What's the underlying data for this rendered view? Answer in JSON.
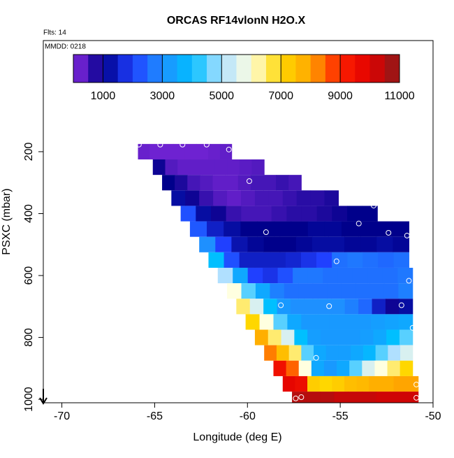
{
  "chart_data": {
    "type": "heatmap",
    "title": "ORCAS RF14vlonN H2O.X",
    "annotations": [
      "Flts: 14",
      "MMDD: 0218"
    ],
    "xlabel": "Longitude (deg E)",
    "ylabel": "PSXC (mbar)",
    "xlim": [
      -71,
      -50
    ],
    "xticks": [
      -70,
      -65,
      -60,
      -55,
      -50
    ],
    "ylim": [
      -159,
      1011
    ],
    "yticks": [
      200,
      400,
      600,
      800,
      1000
    ],
    "colorbar": {
      "lim": [
        0,
        11000
      ],
      "ticks": [
        1000,
        3000,
        5000,
        7000,
        9000,
        11000
      ],
      "colors": [
        "#8a2be2",
        "#00008b",
        "#2040ff",
        "#1e90ff",
        "#00bfff",
        "#b0e0ff",
        "#ffffe0",
        "#ffd700",
        "#ffa500",
        "#ff2000",
        "#e00000",
        "#8b1a1a"
      ]
    },
    "rows": [
      {
        "p": 200,
        "lon": [
          -65.9,
          -60.85
        ],
        "values": [
          250,
          200,
          200,
          200,
          200,
          200,
          250,
          300
        ]
      },
      {
        "p": 250,
        "lon": [
          -65.1,
          -59.1
        ],
        "values": [
          900,
          400,
          300,
          300,
          300,
          300,
          300,
          350,
          400
        ]
      },
      {
        "p": 300,
        "lon": [
          -64.6,
          -57.1
        ],
        "values": [
          1000,
          800,
          500,
          400,
          300,
          300,
          400,
          500,
          500,
          600,
          500
        ]
      },
      {
        "p": 350,
        "lon": [
          -64.1,
          -55.1
        ],
        "values": [
          1200,
          900,
          600,
          400,
          300,
          400,
          500,
          500,
          600,
          700,
          700,
          800
        ]
      },
      {
        "p": 400,
        "lon": [
          -63.6,
          -53.0
        ],
        "values": [
          2200,
          1200,
          900,
          600,
          500,
          500,
          600,
          700,
          700,
          800,
          900,
          1000,
          1000
        ]
      },
      {
        "p": 450,
        "lon": [
          -63.1,
          -51.3
        ],
        "values": [
          2300,
          1500,
          1200,
          1000,
          1000,
          1000,
          1000,
          1100,
          1100,
          1000,
          1000,
          1000,
          1000
        ]
      },
      {
        "p": 500,
        "lon": [
          -62.6,
          -51.3
        ],
        "values": [
          3000,
          2000,
          1300,
          1100,
          1000,
          1000,
          1100,
          1200,
          1200,
          1100,
          1100,
          1200,
          1100
        ]
      },
      {
        "p": 550,
        "lon": [
          -62.1,
          -51.3
        ],
        "values": [
          4000,
          2200,
          1500,
          1500,
          1500,
          1600,
          1800,
          2000,
          2600,
          2700,
          2600,
          2500,
          2600
        ]
      },
      {
        "p": 600,
        "lon": [
          -61.6,
          -51.1
        ],
        "values": [
          5000,
          3500,
          2000,
          1800,
          2200,
          2700,
          2700,
          2600,
          2600,
          2600,
          2600,
          2600,
          2700
        ]
      },
      {
        "p": 650,
        "lon": [
          -61.1,
          -51.1
        ],
        "values": [
          6000,
          4500,
          3500,
          2800,
          2600,
          2600,
          2600,
          2600,
          2600,
          2600,
          2600,
          2600,
          2800
        ]
      },
      {
        "p": 700,
        "lon": [
          -60.6,
          -51.1
        ],
        "values": [
          6500,
          5500,
          4000,
          3200,
          3000,
          3000,
          3000,
          3000,
          2800,
          2500,
          1500,
          900,
          1200
        ]
      },
      {
        "p": 750,
        "lon": [
          -60.1,
          -51.1
        ],
        "values": [
          7000,
          6000,
          4500,
          3500,
          3200,
          3200,
          3200,
          3200,
          3200,
          3300,
          3400,
          3500
        ]
      },
      {
        "p": 800,
        "lon": [
          -59.6,
          -51.1
        ],
        "values": [
          7800,
          6500,
          5500,
          4000,
          3300,
          3200,
          3200,
          3200,
          3300,
          3500,
          4000,
          4500
        ]
      },
      {
        "p": 850,
        "lon": [
          -59.1,
          -51.1
        ],
        "values": [
          8300,
          7500,
          6500,
          4500,
          3500,
          3300,
          3300,
          3500,
          3800,
          4500,
          5000,
          5500
        ]
      },
      {
        "p": 900,
        "lon": [
          -58.6,
          -51.1
        ],
        "values": [
          9500,
          8500,
          6000,
          3500,
          3200,
          3500,
          4500,
          5500,
          6000,
          6500,
          7000
        ]
      },
      {
        "p": 950,
        "lon": [
          -58.1,
          -50.8
        ],
        "values": [
          9800,
          9600,
          7200,
          7000,
          7200,
          7500,
          7600,
          7800,
          7800,
          8000,
          8000
        ]
      },
      {
        "p": 1000,
        "lon": [
          -57.6,
          -50.8
        ],
        "values": [
          10500,
          10500,
          10500,
          10300,
          10300,
          10300,
          10200,
          10200,
          10200
        ]
      }
    ],
    "points": {
      "x": [
        -65.85,
        -64.7,
        -63.5,
        -62.2,
        -61.0,
        -59.9,
        -59.0,
        -53.2,
        -54.0,
        -52.4,
        -51.4,
        -55.2,
        -51.3,
        -58.2,
        -55.6,
        -51.7,
        -51.1,
        -56.3,
        -50.9,
        -50.9,
        -57.4,
        -57.1
      ],
      "y": [
        177,
        177,
        177,
        177,
        193,
        295,
        460,
        374,
        432,
        462,
        471,
        554,
        617,
        696,
        699,
        696,
        769,
        866,
        952,
        995,
        997,
        993
      ]
    }
  }
}
